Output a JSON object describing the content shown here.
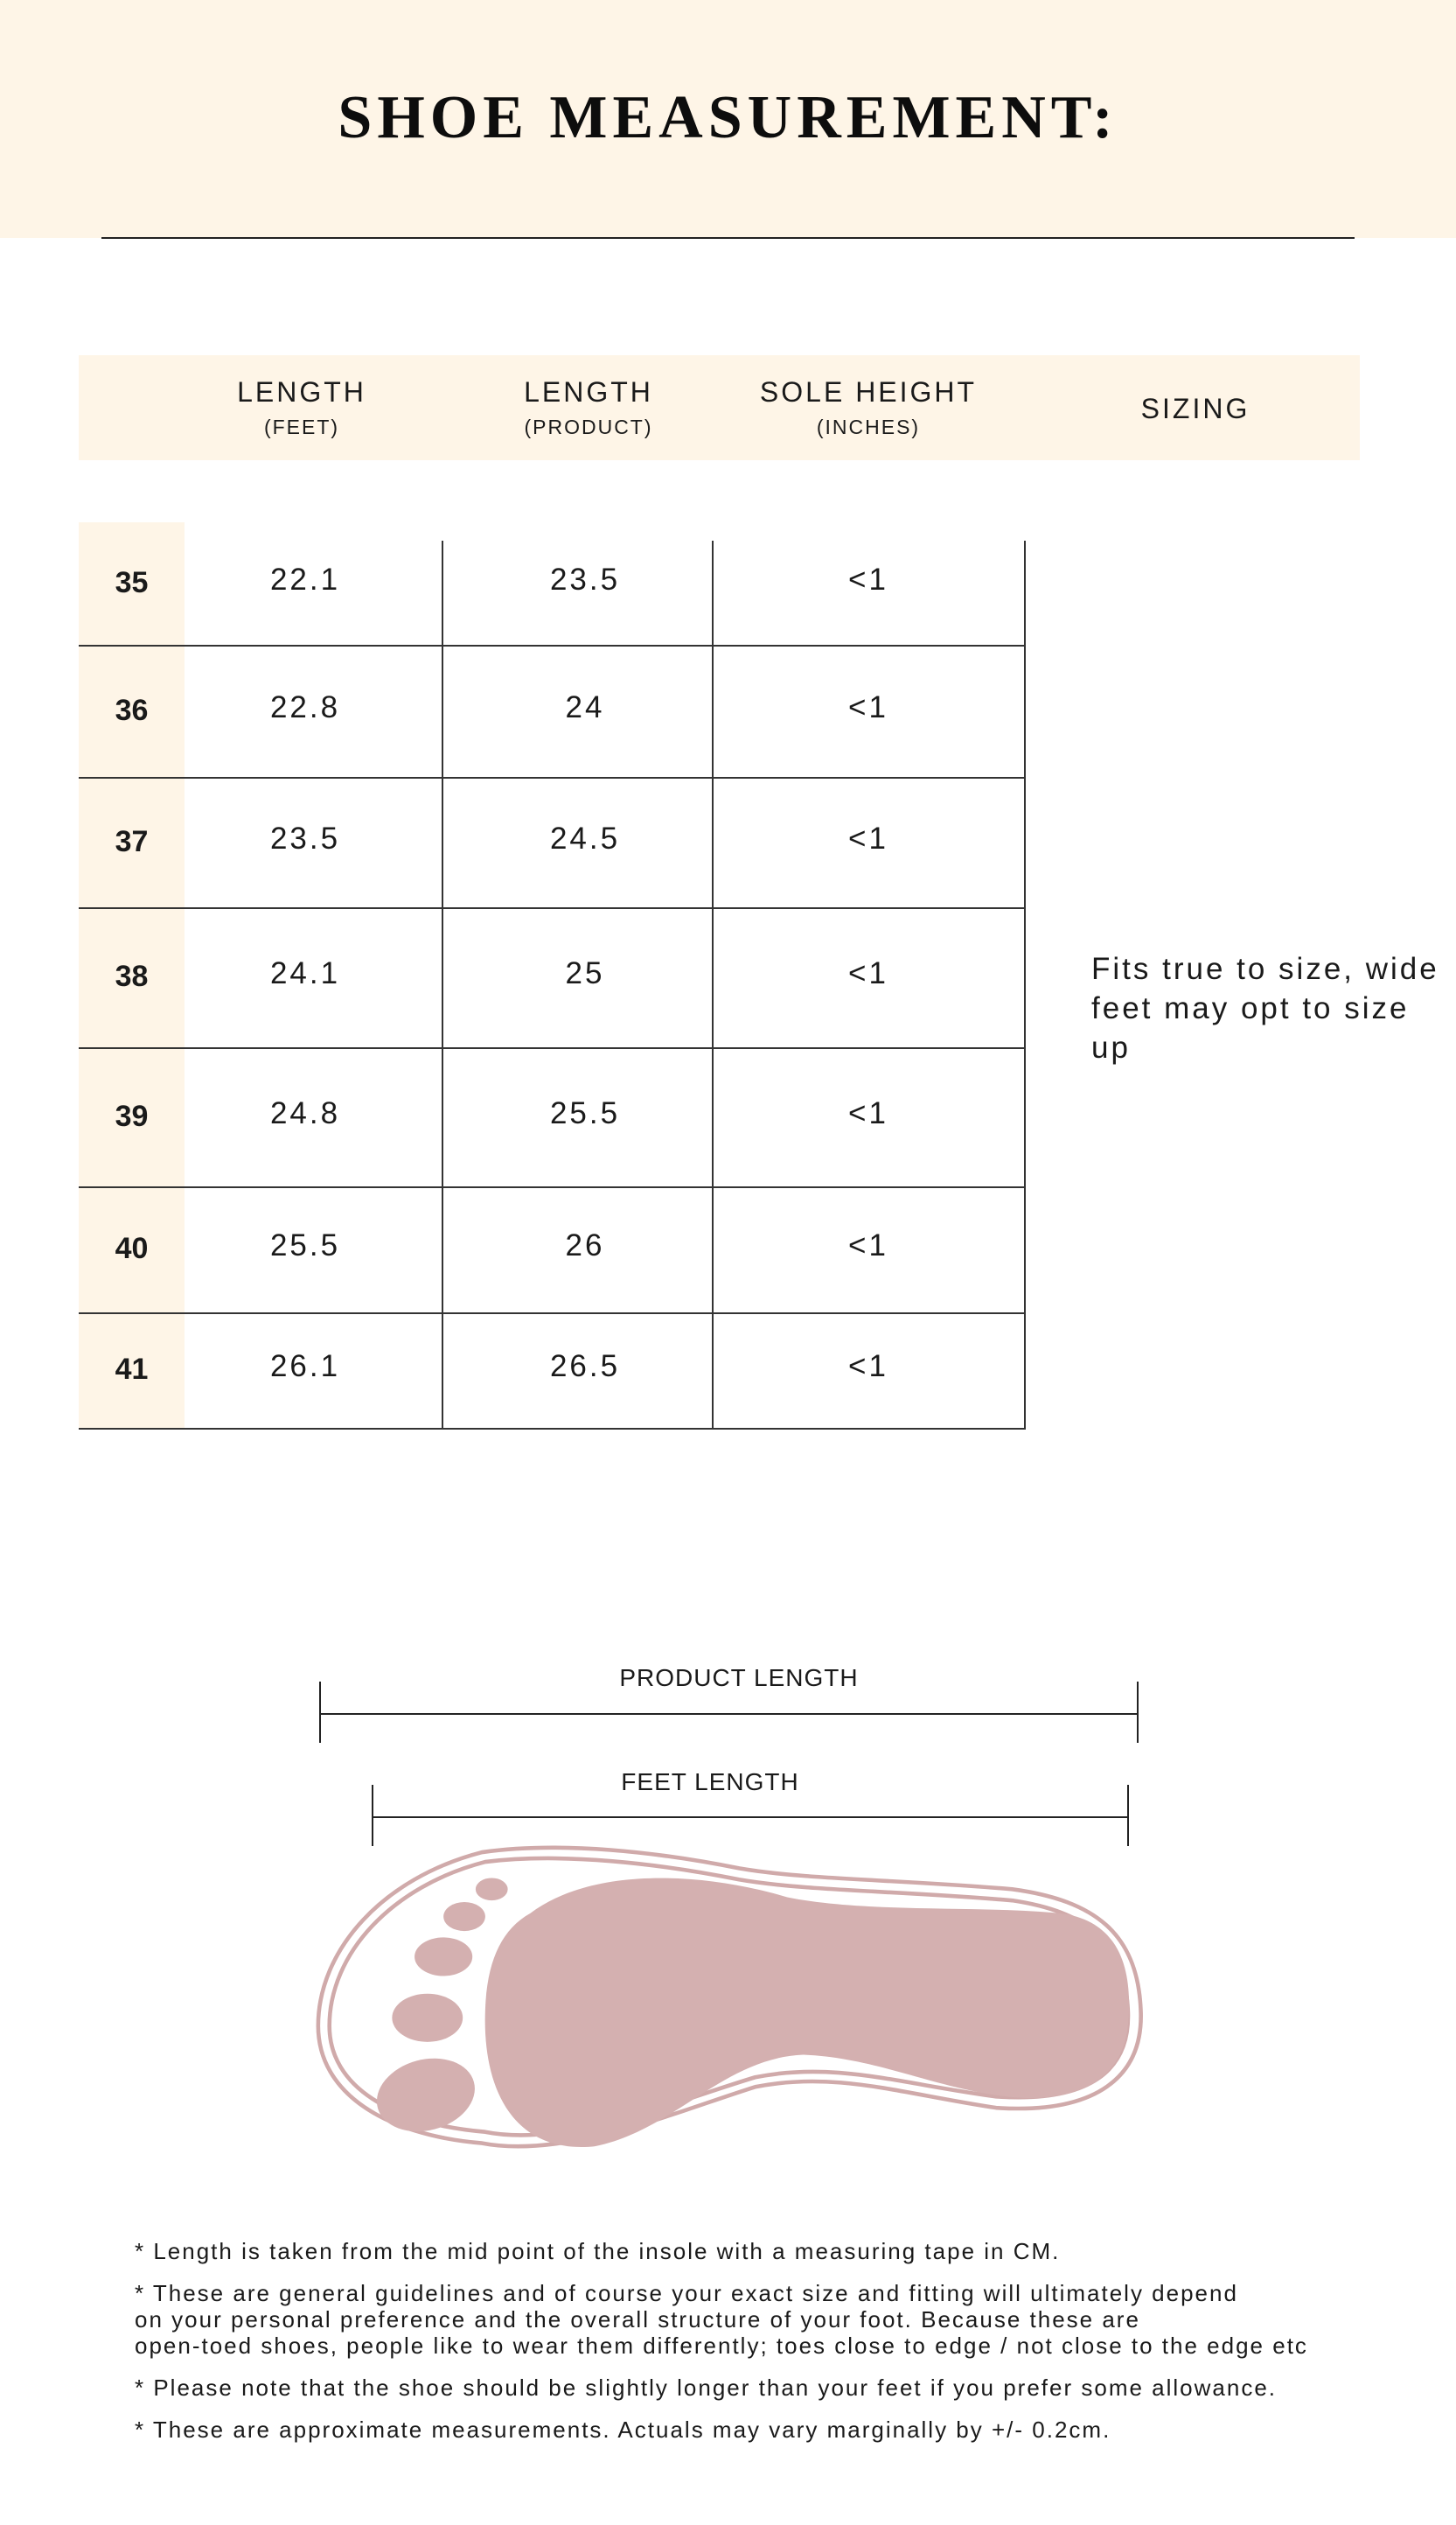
{
  "title": "SHOE MEASUREMENT:",
  "table": {
    "headers": [
      {
        "label": "LENGTH",
        "sub": "(FEET)"
      },
      {
        "label": "LENGTH",
        "sub": "(PRODUCT)"
      },
      {
        "label": "SOLE HEIGHT",
        "sub": "(INCHES)"
      },
      {
        "label": "SIZING",
        "sub": ""
      }
    ],
    "rows": [
      {
        "size": "35",
        "feet": "22.1",
        "product": "23.5",
        "sole": "<1"
      },
      {
        "size": "36",
        "feet": "22.8",
        "product": "24",
        "sole": "<1"
      },
      {
        "size": "37",
        "feet": "23.5",
        "product": "24.5",
        "sole": "<1"
      },
      {
        "size": "38",
        "feet": "24.1",
        "product": "25",
        "sole": "<1"
      },
      {
        "size": "39",
        "feet": "24.8",
        "product": "25.5",
        "sole": "<1"
      },
      {
        "size": "40",
        "feet": "25.5",
        "product": "26",
        "sole": "<1"
      },
      {
        "size": "41",
        "feet": "26.1",
        "product": "26.5",
        "sole": "<1"
      }
    ],
    "sizing_note": "Fits true to size, wide feet may opt to size up"
  },
  "diagram": {
    "product_length_label": "PRODUCT LENGTH",
    "feet_length_label": "FEET LENGTH",
    "foot_color": "#d4b0b0",
    "accent_bg": "#fef5e7"
  },
  "notes": [
    "* Length is taken from the mid point of the insole with a measuring tape in CM.",
    "* These are general guidelines and of course your exact size and fitting will ultimately depend\non your personal preference and the overall structure of your foot. Because these are\nopen-toed shoes, people like to wear them differently; toes close to edge / not close to the edge etc",
    "* Please note that the shoe should be slightly longer than your feet if you prefer some allowance.",
    "* These are approximate measurements. Actuals may vary marginally by +/- 0.2cm."
  ]
}
